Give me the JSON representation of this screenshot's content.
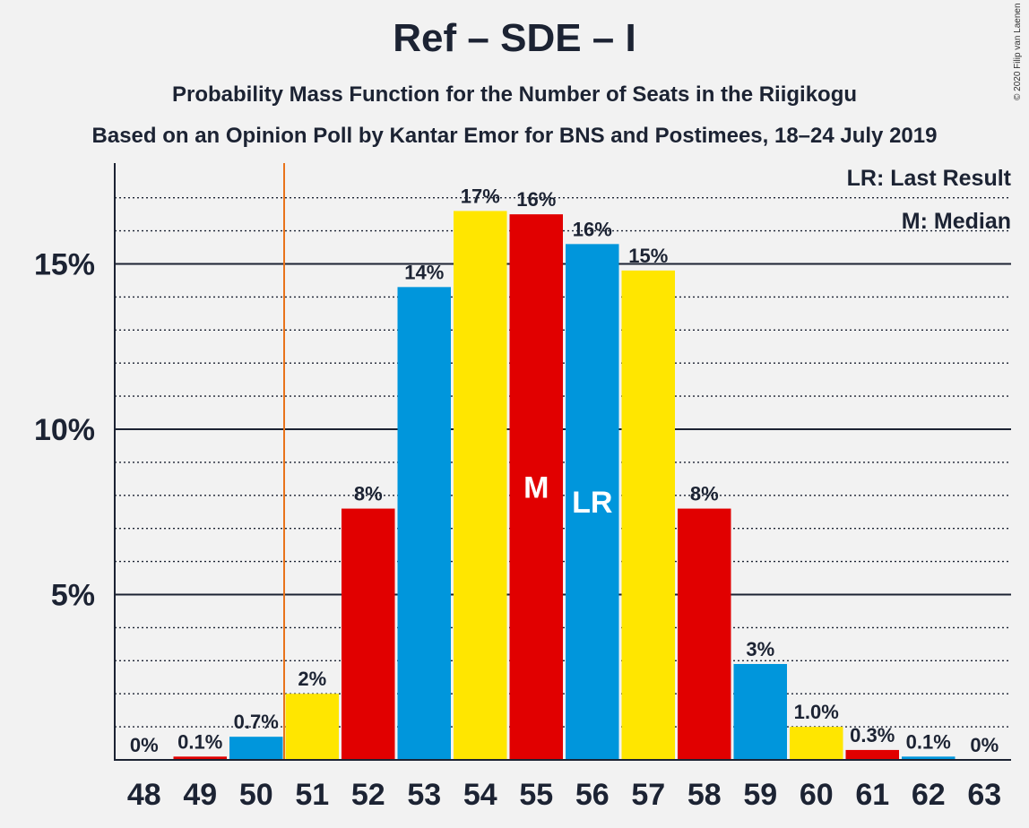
{
  "chart_data": {
    "type": "bar",
    "title": "Ref – SDE – I",
    "subtitle": "Probability Mass Function for the Number of Seats in the Riigikogu",
    "subtitle2": "Based on an Opinion Poll by Kantar Emor for BNS and Postimees, 18–24 July 2019",
    "copyright": "© 2020 Filip van Laenen",
    "legend": {
      "last_result": "LR: Last Result",
      "median": "M: Median",
      "placement": "top-right"
    },
    "categories": [
      "48",
      "49",
      "50",
      "51",
      "52",
      "53",
      "54",
      "55",
      "56",
      "57",
      "58",
      "59",
      "60",
      "61",
      "62",
      "63"
    ],
    "values": [
      0,
      0.1,
      0.7,
      2.0,
      7.6,
      14.3,
      16.6,
      16.5,
      15.6,
      14.8,
      7.6,
      2.9,
      1.0,
      0.3,
      0.1,
      0
    ],
    "labels": [
      "0%",
      "0.1%",
      "0.7%",
      "2%",
      "8%",
      "14%",
      "17%",
      "16%",
      "16%",
      "15%",
      "8%",
      "3%",
      "1.0%",
      "0.3%",
      "0.1%",
      "0%"
    ],
    "colors": [
      "#0096dc",
      "#e10000",
      "#0096dc",
      "#ffe600",
      "#e10000",
      "#0096dc",
      "#ffe600",
      "#e10000",
      "#0096dc",
      "#ffe600",
      "#e10000",
      "#0096dc",
      "#ffe600",
      "#e10000",
      "#0096dc",
      "#ffe600"
    ],
    "median_index": 7,
    "median_label": "M",
    "last_result_index": 8,
    "last_result_label": "LR",
    "threshold_after": "50",
    "threshold_color": "#e8731c",
    "ylim": [
      0,
      18
    ],
    "yticks": [
      {
        "value": 5,
        "label": "5%"
      },
      {
        "value": 10,
        "label": "10%"
      },
      {
        "value": 15,
        "label": "15%"
      }
    ],
    "grid": true
  }
}
